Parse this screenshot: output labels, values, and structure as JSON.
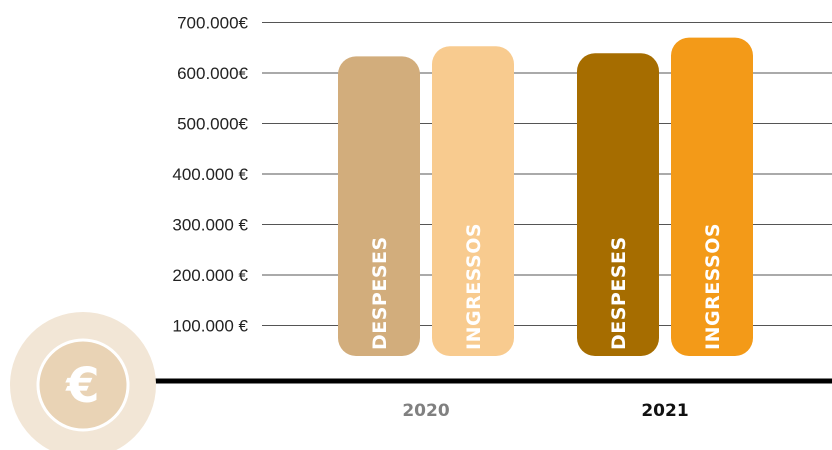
{
  "chart_data": {
    "type": "bar",
    "categories": [
      "2020",
      "2021"
    ],
    "series": [
      {
        "name": "DESPESES",
        "values": [
          633000,
          639000
        ],
        "colors": [
          "#d2ad7c",
          "#a66d00"
        ]
      },
      {
        "name": "INGRESSOS",
        "values": [
          653000,
          670000
        ],
        "colors": [
          "#f8cb8f",
          "#f39a18"
        ]
      }
    ],
    "y_ticks": [
      {
        "value": 100000,
        "label": "100.000 €"
      },
      {
        "value": 200000,
        "label": "200.000 €"
      },
      {
        "value": 300000,
        "label": "300.000 €"
      },
      {
        "value": 400000,
        "label": "400.000 €"
      },
      {
        "value": 500000,
        "label": "500.000€"
      },
      {
        "value": 600000,
        "label": "600.000€"
      },
      {
        "value": 700000,
        "label": "700.000€"
      }
    ],
    "ylim": [
      0,
      700000
    ],
    "grid": true,
    "category_label_colors": [
      "#808080",
      "#111111"
    ],
    "title": "",
    "xlabel": "",
    "ylabel": ""
  },
  "badge": {
    "symbol": "€",
    "icon": "euro-icon",
    "outer_color": "#f2e6d6",
    "inner_color": "#e9d3b5"
  },
  "colors": {
    "grid": "#555555",
    "axis": "#000000"
  }
}
